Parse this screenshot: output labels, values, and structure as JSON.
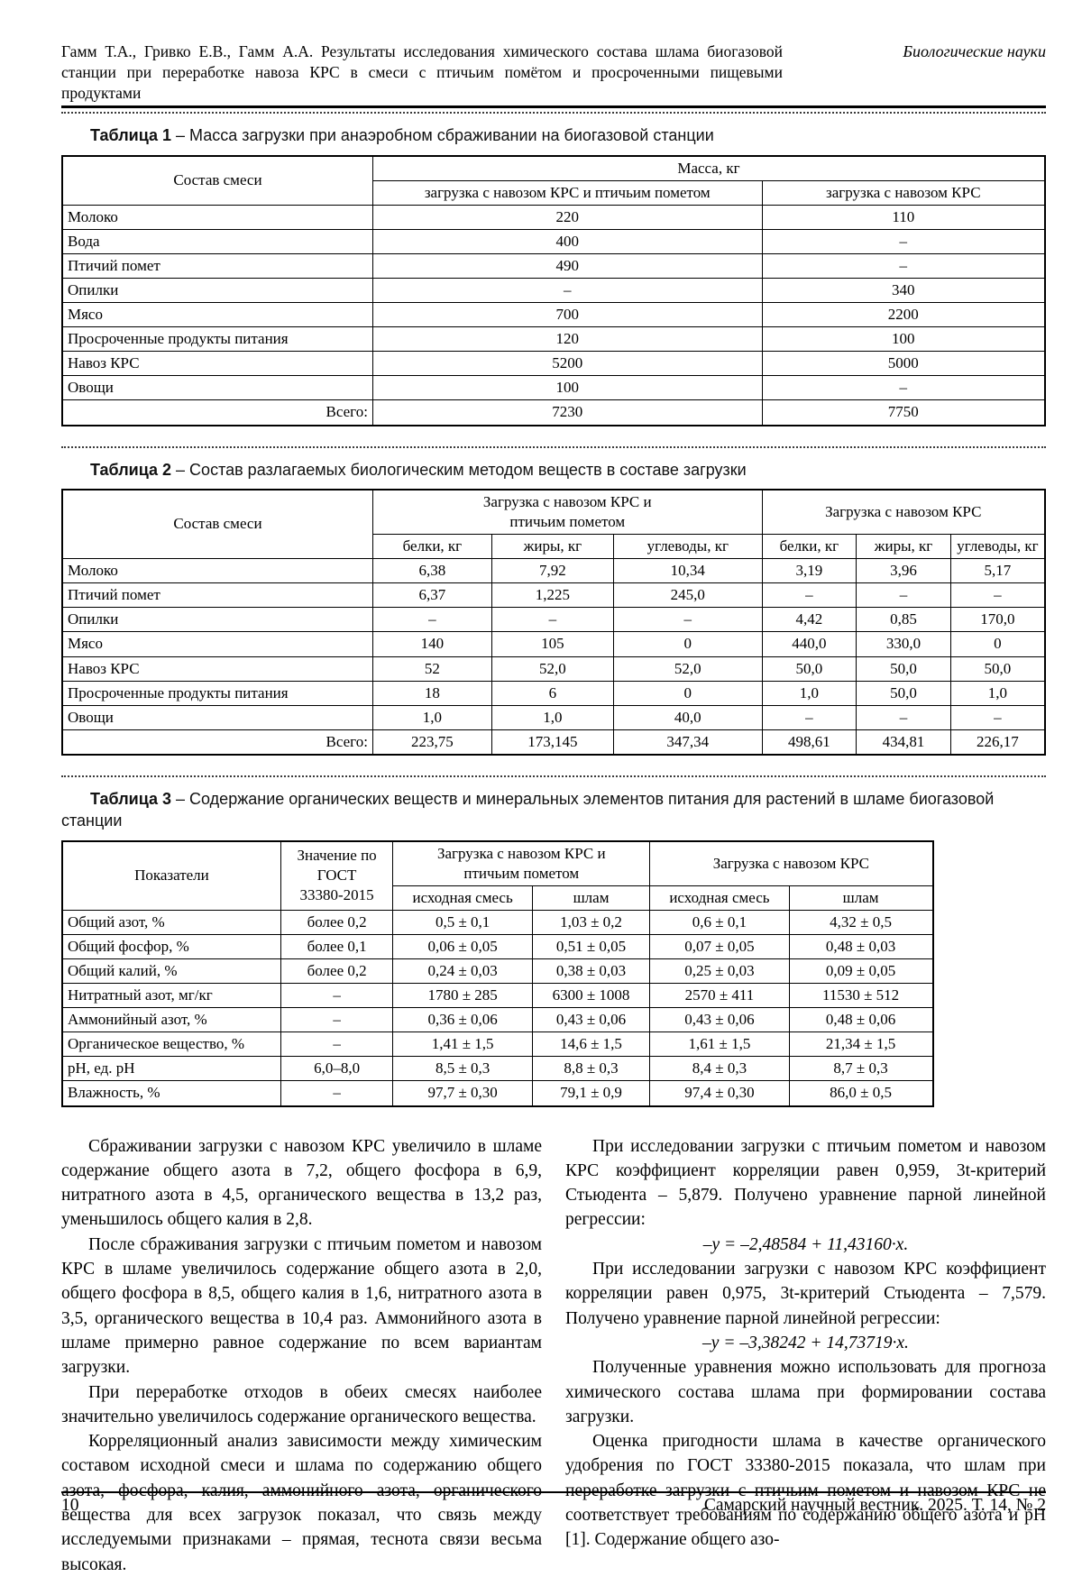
{
  "header": {
    "title": "Гамм Т.А., Гривко Е.В., Гамм А.А. Результаты исследования химического состава шлама биогазовой станции при переработке навоза КРС в смеси с птичьим помётом и просроченными пищевыми продуктами",
    "section": "Биологические науки"
  },
  "table1": {
    "caption_label": "Таблица 1",
    "caption_text": " – Масса загрузки при анаэробном сбраживании на биогазовой станции",
    "head": {
      "composition": "Состав смеси",
      "mass": "Масса, кг",
      "sub1": "загрузка с навозом КРС и птичьим пометом",
      "sub2": "загрузка с навозом КРС"
    },
    "rows": [
      [
        "Молоко",
        "220",
        "110"
      ],
      [
        "Вода",
        "400",
        "–"
      ],
      [
        "Птичий помет",
        "490",
        "–"
      ],
      [
        "Опилки",
        "–",
        "340"
      ],
      [
        "Мясо",
        "700",
        "2200"
      ],
      [
        "Просроченные продукты питания",
        "120",
        "100"
      ],
      [
        "Навоз КРС",
        "5200",
        "5000"
      ],
      [
        "Овощи",
        "100",
        "–"
      ]
    ],
    "total": [
      "Всего:",
      "7230",
      "7750"
    ]
  },
  "table2": {
    "caption_label": "Таблица 2",
    "caption_text": " – Состав разлагаемых биологическим методом веществ в составе загрузки",
    "head": {
      "composition": "Состав смеси",
      "group1": "Загрузка с навозом КРС и птичьим пометом",
      "group2": "Загрузка с навозом КРС",
      "sub1": "белки, кг",
      "sub2": "жиры, кг",
      "sub3": "углеводы, кг",
      "sub4": "белки, кг",
      "sub5": "жиры, кг",
      "sub6": "углеводы, кг"
    },
    "rows": [
      [
        "Молоко",
        "6,38",
        "7,92",
        "10,34",
        "3,19",
        "3,96",
        "5,17"
      ],
      [
        "Птичий помет",
        "6,37",
        "1,225",
        "245,0",
        "–",
        "–",
        "–"
      ],
      [
        "Опилки",
        "–",
        "–",
        "–",
        "4,42",
        "0,85",
        "170,0"
      ],
      [
        "Мясо",
        "140",
        "105",
        "0",
        "440,0",
        "330,0",
        "0"
      ],
      [
        "Навоз КРС",
        "52",
        "52,0",
        "52,0",
        "50,0",
        "50,0",
        "50,0"
      ],
      [
        "Просроченные продукты питания",
        "18",
        "6",
        "0",
        "1,0",
        "50,0",
        "1,0"
      ],
      [
        "Овощи",
        "1,0",
        "1,0",
        "40,0",
        "–",
        "–",
        "–"
      ]
    ],
    "total": [
      "Всего:",
      "223,75",
      "173,145",
      "347,34",
      "498,61",
      "434,81",
      "226,17"
    ]
  },
  "table3": {
    "caption_label": "Таблица 3",
    "caption_text": " – Содержание органических веществ и минеральных элементов питания для растений в шламе биогазовой станции",
    "head": {
      "indicators": "Показатели",
      "gost": "Значение по ГОСТ 33380-2015",
      "group1": "Загрузка с навозом КРС и птичьим пометом",
      "group2": "Загрузка с навозом КРС",
      "sub1": "исходная смесь",
      "sub2": "шлам",
      "sub3": "исходная смесь",
      "sub4": "шлам"
    },
    "rows": [
      [
        "Общий азот, %",
        "более 0,2",
        "0,5 ± 0,1",
        "1,03 ± 0,2",
        "0,6 ± 0,1",
        "4,32 ± 0,5"
      ],
      [
        "Общий фосфор, %",
        "более 0,1",
        "0,06 ± 0,05",
        "0,51 ± 0,05",
        "0,07 ± 0,05",
        "0,48 ± 0,03"
      ],
      [
        "Общий калий, %",
        "более 0,2",
        "0,24 ± 0,03",
        "0,38 ± 0,03",
        "0,25 ± 0,03",
        "0,09 ± 0,05"
      ],
      [
        "Нитратный азот, мг/кг",
        "–",
        "1780 ± 285",
        "6300 ± 1008",
        "2570 ± 411",
        "11530 ± 512"
      ],
      [
        "Аммонийный азот, %",
        "–",
        "0,36 ± 0,06",
        "0,43 ± 0,06",
        "0,43 ± 0,06",
        "0,48 ± 0,06"
      ],
      [
        "Органическое вещество, %",
        "–",
        "1,41 ± 1,5",
        "14,6 ± 1,5",
        "1,61 ± 1,5",
        "21,34 ± 1,5"
      ],
      [
        "pH, ед. pH",
        "6,0–8,0",
        "8,5 ± 0,3",
        "8,8 ± 0,3",
        "8,4 ± 0,3",
        "8,7 ± 0,3"
      ],
      [
        "Влажность, %",
        "–",
        "97,7 ± 0,30",
        "79,1 ± 0,9",
        "97,4 ± 0,30",
        "86,0 ± 0,5"
      ]
    ]
  },
  "body": {
    "left_paragraphs": [
      "Сбраживании загрузки с навозом КРС увеличило в шламе содержание общего азота в 7,2, общего фосфора в 6,9, нитратного азота в 4,5, органического вещества в 13,2 раз, уменьшилось общего калия в 2,8.",
      "После сбраживания загрузки с птичьим пометом и навозом КРС в шламе увеличилось содержание общего азота в 2,0, общего фосфора в 8,5, общего калия в 1,6, нитратного азота в 3,5, органического вещества в 10,4 раз. Аммонийного азота в шламе примерно равное содержание по всем вариантам загрузки.",
      "При переработке отходов в обеих смесях наиболее значительно увеличилось содержание органического вещества.",
      "Корреляционный анализ зависимости между химическим составом исходной смеси и шлама по содержанию общего азота, фосфора, калия, аммонийного азота, органического вещества для всех загрузок показал, что связь между исследуемыми признаками – прямая, теснота связи весьма высокая."
    ],
    "right_paragraph_1": "При исследовании загрузки с птичьим пометом и навозом КРС коэффициент корреляции равен 0,959, 3t-критерий Стьюдента – 5,879. Получено уравнение парной линейной регрессии:",
    "equation_1": "–y = –2,48584 + 11,43160·x.",
    "right_paragraph_2": "При исследовании загрузки с навозом КРС коэффициент корреляции равен 0,975, 3t-критерий Стьюдента – 7,579. Получено уравнение парной линейной регрессии:",
    "equation_2": "–y = –3,38242 + 14,73719·x.",
    "right_paragraph_3": "Полученные уравнения можно использовать для прогноза химического состава шлама при формировании состава загрузки.",
    "right_paragraph_4": "Оценка пригодности шлама в качестве органического удобрения по ГОСТ 33380-2015 показала, что шлам при переработке загрузки с птичьим пометом и навозом КРС не соответствует требованиям по содержанию общего азота и pH [1]. Содержание общего азо-"
  },
  "footer": {
    "page_number": "10",
    "journal": "Самарский научный вестник. 2025. Т. 14, № 2"
  }
}
